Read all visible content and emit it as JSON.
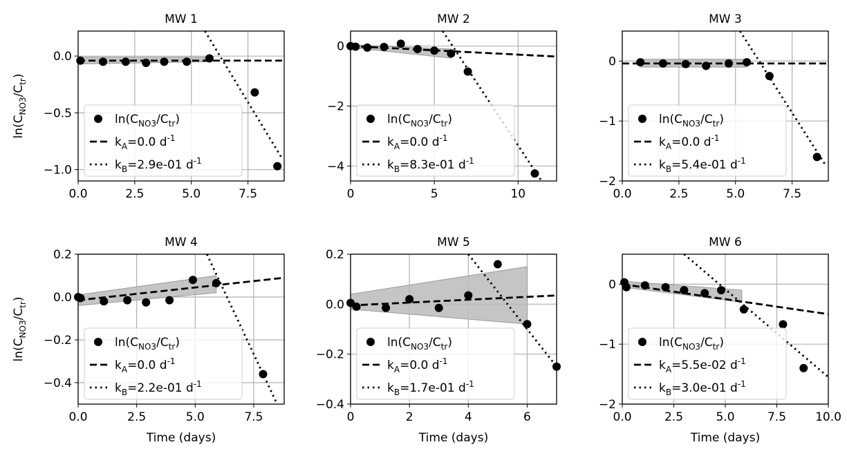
{
  "chart_data": [
    {
      "type": "scatter",
      "title": "MW 1",
      "ylabel": [
        "ln(C",
        {
          "text": "NO3",
          "shift": "sub"
        },
        "/C",
        {
          "text": "tr",
          "shift": "sub"
        },
        ")"
      ],
      "xlim": [
        0,
        9.1
      ],
      "ylim": [
        -1.1,
        0.22
      ],
      "xticks": [
        {
          "value": 0,
          "label": "0.0"
        },
        2.5,
        {
          "value": 5,
          "label": "5.0"
        },
        7.5
      ],
      "yticks": [
        {
          "value": 0,
          "label": "0.0"
        },
        {
          "value": -0.5,
          "label": "−0.5"
        },
        {
          "value": -1,
          "label": "−1.0"
        }
      ],
      "grid": true,
      "legend": "lower left",
      "band": {
        "color": "#bbbbbb",
        "x": [
          0,
          5.8
        ],
        "lower": [
          -0.07,
          -0.05
        ],
        "upper": [
          -0.01,
          -0.01
        ]
      },
      "series": [
        {
          "name": [
            "ln(C",
            {
              "text": "NO3",
              "shift": "sub"
            },
            "/C",
            {
              "text": "tr",
              "shift": "sub"
            },
            ")"
          ],
          "style": "points",
          "color": "#000000",
          "x": [
            0.1,
            1.1,
            2.1,
            3.0,
            3.8,
            4.8,
            5.8,
            7.8,
            8.8
          ],
          "values": [
            -0.04,
            -0.05,
            -0.05,
            -0.06,
            -0.05,
            -0.05,
            -0.02,
            -0.32,
            -0.97
          ]
        },
        {
          "name": [
            "k",
            {
              "text": "A",
              "shift": "sub"
            },
            "=0.0 d",
            {
              "text": "-1",
              "shift": "super"
            }
          ],
          "style": "dashed",
          "color": "#000000",
          "x": [
            0,
            9.1
          ],
          "values": [
            -0.04,
            -0.04
          ]
        },
        {
          "name": [
            "k",
            {
              "text": "B",
              "shift": "sub"
            },
            "=2.9e-01 d",
            {
              "text": "-1",
              "shift": "super"
            }
          ],
          "style": "dotted",
          "color": "#000000",
          "x": [
            5.6,
            9.0
          ],
          "values": [
            0.22,
            -0.9
          ]
        }
      ]
    },
    {
      "type": "scatter",
      "title": "MW 2",
      "xlim": [
        0,
        12.3
      ],
      "ylim": [
        -4.5,
        0.5
      ],
      "xticks": [
        0,
        5,
        10
      ],
      "yticks": [
        0,
        {
          "value": -2,
          "label": "−2"
        },
        {
          "value": -4,
          "label": "−4"
        }
      ],
      "grid": true,
      "legend": "lower left",
      "band": {
        "color": "#bbbbbb",
        "x": [
          0,
          6
        ],
        "lower": [
          -0.05,
          -0.4
        ],
        "upper": [
          0.05,
          -0.1
        ]
      },
      "series": [
        {
          "name": [
            "ln(C",
            {
              "text": "NO3",
              "shift": "sub"
            },
            "/C",
            {
              "text": "tr",
              "shift": "sub"
            },
            ")"
          ],
          "style": "points",
          "color": "#000000",
          "x": [
            0,
            0.3,
            1,
            2,
            3,
            4,
            5,
            6,
            7,
            11
          ],
          "values": [
            0,
            -0.02,
            -0.05,
            -0.03,
            0.08,
            -0.1,
            -0.15,
            -0.25,
            -0.85,
            -4.25
          ]
        },
        {
          "name": [
            "k",
            {
              "text": "A",
              "shift": "sub"
            },
            "=0.0 d",
            {
              "text": "-1",
              "shift": "super"
            }
          ],
          "style": "dashed",
          "color": "#000000",
          "x": [
            0,
            12.3
          ],
          "values": [
            0,
            -0.35
          ]
        },
        {
          "name": [
            "k",
            {
              "text": "B",
              "shift": "sub"
            },
            "=8.3e-01 d",
            {
              "text": "-1",
              "shift": "super"
            }
          ],
          "style": "dotted",
          "color": "#000000",
          "x": [
            5.5,
            11.4
          ],
          "values": [
            0.5,
            -4.5
          ]
        }
      ]
    },
    {
      "type": "scatter",
      "title": "MW 3",
      "xlim": [
        0,
        9.1
      ],
      "ylim": [
        -2,
        0.5
      ],
      "xticks": [
        {
          "value": 0,
          "label": "0.0"
        },
        2.5,
        {
          "value": 5,
          "label": "5.0"
        },
        7.5
      ],
      "yticks": [
        0,
        {
          "value": -1,
          "label": "−1"
        },
        {
          "value": -2,
          "label": "−2"
        }
      ],
      "grid": true,
      "legend": "lower left",
      "band": {
        "color": "#bbbbbb",
        "x": [
          0.8,
          5.5
        ],
        "lower": [
          -0.1,
          -0.1
        ],
        "upper": [
          0.03,
          0.03
        ]
      },
      "series": [
        {
          "name": [
            "ln(C",
            {
              "text": "NO3",
              "shift": "sub"
            },
            "/C",
            {
              "text": "tr",
              "shift": "sub"
            },
            ")"
          ],
          "style": "points",
          "color": "#000000",
          "x": [
            0.8,
            1.8,
            2.8,
            3.7,
            4.7,
            5.5,
            6.5,
            8.6
          ],
          "values": [
            -0.02,
            -0.04,
            -0.05,
            -0.08,
            -0.04,
            -0.02,
            -0.25,
            -1.6
          ]
        },
        {
          "name": [
            "k",
            {
              "text": "A",
              "shift": "sub"
            },
            "=0.0 d",
            {
              "text": "-1",
              "shift": "super"
            }
          ],
          "style": "dashed",
          "color": "#000000",
          "x": [
            0,
            9.1
          ],
          "values": [
            -0.04,
            -0.04
          ]
        },
        {
          "name": [
            "k",
            {
              "text": "B",
              "shift": "sub"
            },
            "=5.4e-01 d",
            {
              "text": "-1",
              "shift": "super"
            }
          ],
          "style": "dotted",
          "color": "#000000",
          "x": [
            5.2,
            9.0
          ],
          "values": [
            0.5,
            -1.75
          ]
        }
      ]
    },
    {
      "type": "scatter",
      "title": "MW 4",
      "ylabel": [
        "ln(C",
        {
          "text": "NO3",
          "shift": "sub"
        },
        "/C",
        {
          "text": "tr",
          "shift": "sub"
        },
        ")"
      ],
      "xlabel": "Time (days)",
      "xlim": [
        0,
        8.8
      ],
      "ylim": [
        -0.5,
        0.2
      ],
      "xticks": [
        {
          "value": 0,
          "label": "0.0"
        },
        2.5,
        {
          "value": 5,
          "label": "5.0"
        },
        7.5
      ],
      "yticks": [
        0.2,
        {
          "value": 0,
          "label": "0.0"
        },
        {
          "value": -0.2,
          "label": "−0.2"
        },
        {
          "value": -0.4,
          "label": "−0.4"
        }
      ],
      "grid": true,
      "legend": "lower left",
      "band": {
        "color": "#bbbbbb",
        "x": [
          0,
          5.9
        ],
        "lower": [
          -0.04,
          0.02
        ],
        "upper": [
          0.01,
          0.1
        ]
      },
      "series": [
        {
          "name": [
            "ln(C",
            {
              "text": "NO3",
              "shift": "sub"
            },
            "/C",
            {
              "text": "tr",
              "shift": "sub"
            },
            ")"
          ],
          "style": "points",
          "color": "#000000",
          "x": [
            0,
            0.1,
            1.1,
            2.1,
            2.9,
            3.9,
            4.9,
            5.9,
            7.9
          ],
          "values": [
            0,
            -0.005,
            -0.02,
            -0.015,
            -0.025,
            -0.015,
            0.08,
            0.065,
            -0.36
          ]
        },
        {
          "name": [
            "k",
            {
              "text": "A",
              "shift": "sub"
            },
            "=0.0 d",
            {
              "text": "-1",
              "shift": "super"
            }
          ],
          "style": "dashed",
          "color": "#000000",
          "x": [
            0,
            8.8
          ],
          "values": [
            -0.015,
            0.09
          ]
        },
        {
          "name": [
            "k",
            {
              "text": "B",
              "shift": "sub"
            },
            "=2.2e-01 d",
            {
              "text": "-1",
              "shift": "super"
            }
          ],
          "style": "dotted",
          "color": "#000000",
          "x": [
            5.5,
            8.5
          ],
          "values": [
            0.2,
            -0.5
          ]
        }
      ]
    },
    {
      "type": "scatter",
      "title": "MW 5",
      "xlabel": "Time (days)",
      "xlim": [
        0,
        7
      ],
      "ylim": [
        -0.4,
        0.2
      ],
      "xticks": [
        0,
        2,
        4,
        6
      ],
      "yticks": [
        0.2,
        {
          "value": 0,
          "label": "0.0"
        },
        {
          "value": -0.2,
          "label": "−0.2"
        },
        {
          "value": -0.4,
          "label": "−0.4"
        }
      ],
      "grid": true,
      "legend": "lower left",
      "band": {
        "color": "#bbbbbb",
        "x": [
          0,
          6
        ],
        "lower": [
          -0.02,
          -0.08
        ],
        "upper": [
          0.04,
          0.15
        ]
      },
      "series": [
        {
          "name": [
            "ln(C",
            {
              "text": "NO3",
              "shift": "sub"
            },
            "/C",
            {
              "text": "tr",
              "shift": "sub"
            },
            ")"
          ],
          "style": "points",
          "color": "#000000",
          "x": [
            0,
            0.2,
            1.2,
            2,
            3,
            4,
            5,
            6,
            7
          ],
          "values": [
            0.005,
            -0.01,
            -0.015,
            0.02,
            -0.015,
            0.035,
            0.16,
            -0.08,
            -0.25
          ]
        },
        {
          "name": [
            "k",
            {
              "text": "A",
              "shift": "sub"
            },
            "=0.0 d",
            {
              "text": "-1",
              "shift": "super"
            }
          ],
          "style": "dashed",
          "color": "#000000",
          "x": [
            0,
            7
          ],
          "values": [
            -0.005,
            0.035
          ]
        },
        {
          "name": [
            "k",
            {
              "text": "B",
              "shift": "sub"
            },
            "=1.7e-01 d",
            {
              "text": "-1",
              "shift": "super"
            }
          ],
          "style": "dotted",
          "color": "#000000",
          "x": [
            4,
            7
          ],
          "values": [
            0.2,
            -0.25
          ]
        }
      ]
    },
    {
      "type": "scatter",
      "title": "MW 6",
      "xlabel": "Time (days)",
      "xlim": [
        0,
        10
      ],
      "ylim": [
        -2,
        0.5
      ],
      "xticks": [
        {
          "value": 0,
          "label": "0.0"
        },
        2.5,
        {
          "value": 5,
          "label": "5.0"
        },
        7.5,
        {
          "value": 10,
          "label": "10.0"
        }
      ],
      "yticks": [
        0,
        {
          "value": -1,
          "label": "−1"
        },
        {
          "value": -2,
          "label": "−2"
        }
      ],
      "grid": true,
      "legend": "lower left",
      "band": {
        "color": "#bbbbbb",
        "x": [
          0,
          5.8
        ],
        "lower": [
          -0.05,
          -0.3
        ],
        "upper": [
          0.05,
          -0.1
        ]
      },
      "series": [
        {
          "name": [
            "ln(C",
            {
              "text": "NO3",
              "shift": "sub"
            },
            "/C",
            {
              "text": "tr",
              "shift": "sub"
            },
            ")"
          ],
          "style": "points",
          "color": "#000000",
          "x": [
            0.1,
            0.2,
            1.1,
            2.1,
            3,
            4,
            4.8,
            5.9,
            7.8,
            8.8
          ],
          "values": [
            0.03,
            -0.05,
            -0.02,
            -0.05,
            -0.1,
            -0.15,
            -0.1,
            -0.42,
            -0.67,
            -1.4
          ]
        },
        {
          "name": [
            "k",
            {
              "text": "A",
              "shift": "sub"
            },
            "=5.5e-02 d",
            {
              "text": "-1",
              "shift": "super"
            }
          ],
          "style": "dashed",
          "color": "#000000",
          "x": [
            0,
            10
          ],
          "values": [
            0,
            -0.5
          ]
        },
        {
          "name": [
            "k",
            {
              "text": "B",
              "shift": "sub"
            },
            "=3.0e-01 d",
            {
              "text": "-1",
              "shift": "super"
            }
          ],
          "style": "dotted",
          "color": "#000000",
          "x": [
            3,
            10
          ],
          "values": [
            0.5,
            -1.55
          ]
        }
      ]
    }
  ]
}
